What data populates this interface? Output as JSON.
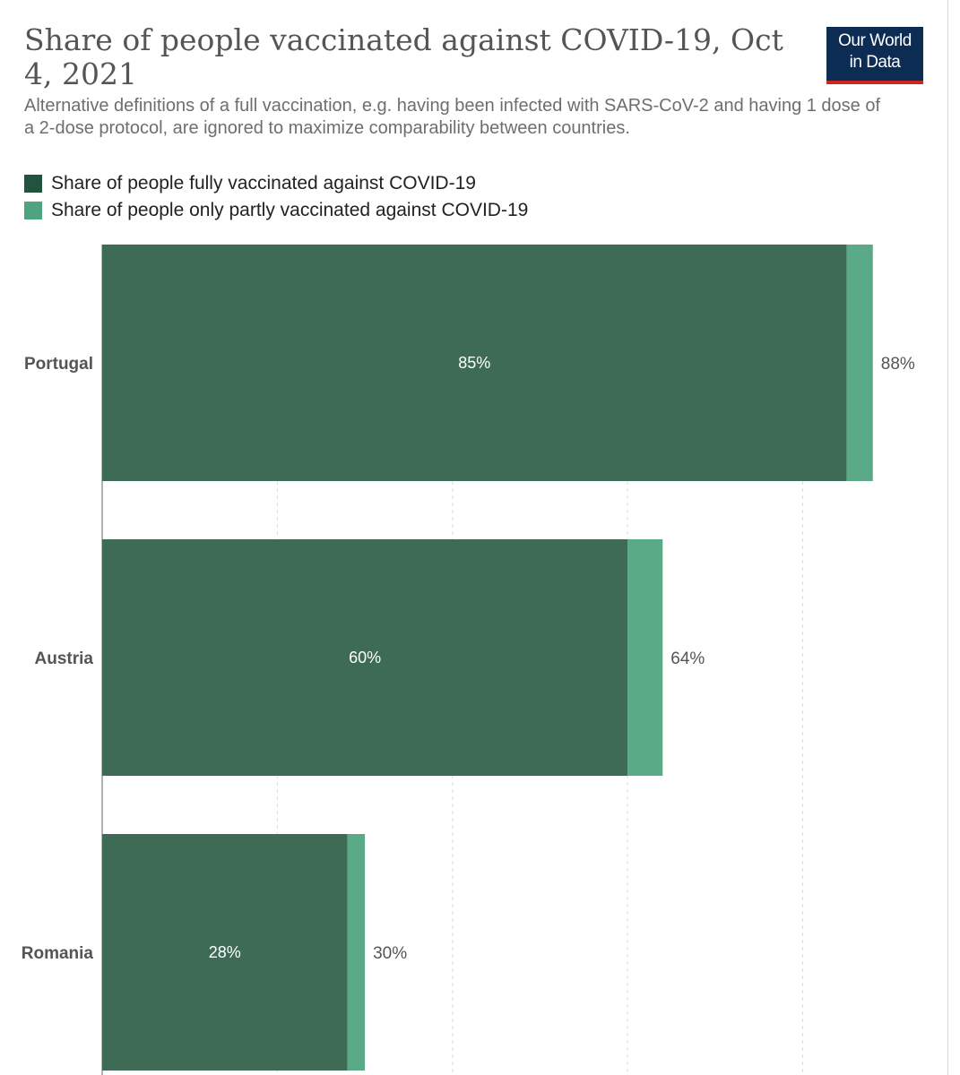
{
  "header": {
    "title": "Share of people vaccinated against COVID-19, Oct 4, 2021",
    "subtitle": "Alternative definitions of a full vaccination, e.g. having been infected with SARS-CoV-2 and having 1 dose of a 2-dose protocol, are ignored to maximize comparability between countries.",
    "logo_line1": "Our World",
    "logo_line2": "in Data"
  },
  "colors": {
    "fully": "#3d6b55",
    "partly": "#5aa987",
    "logo_bg": "#0d2c54",
    "logo_accent": "#ce261e"
  },
  "legend": [
    {
      "label": "Share of people fully vaccinated against COVID-19",
      "color": "#22533f"
    },
    {
      "label": "Share of people only partly vaccinated against COVID-19",
      "color": "#4fa37e"
    }
  ],
  "chart_data": {
    "type": "bar",
    "orientation": "horizontal",
    "stacked": true,
    "categories": [
      "Portugal",
      "Austria",
      "Romania"
    ],
    "series": [
      {
        "name": "Share of people fully vaccinated against COVID-19",
        "values": [
          85,
          60,
          28
        ],
        "labels": [
          "85%",
          "60%",
          "28%"
        ]
      },
      {
        "name": "Share of people only partly vaccinated against COVID-19",
        "values": [
          3,
          4,
          2
        ]
      }
    ],
    "total_labels": [
      "88%",
      "64%",
      "30%"
    ],
    "xlim": [
      0,
      100
    ],
    "grid": true,
    "legend_position": "top-left"
  }
}
